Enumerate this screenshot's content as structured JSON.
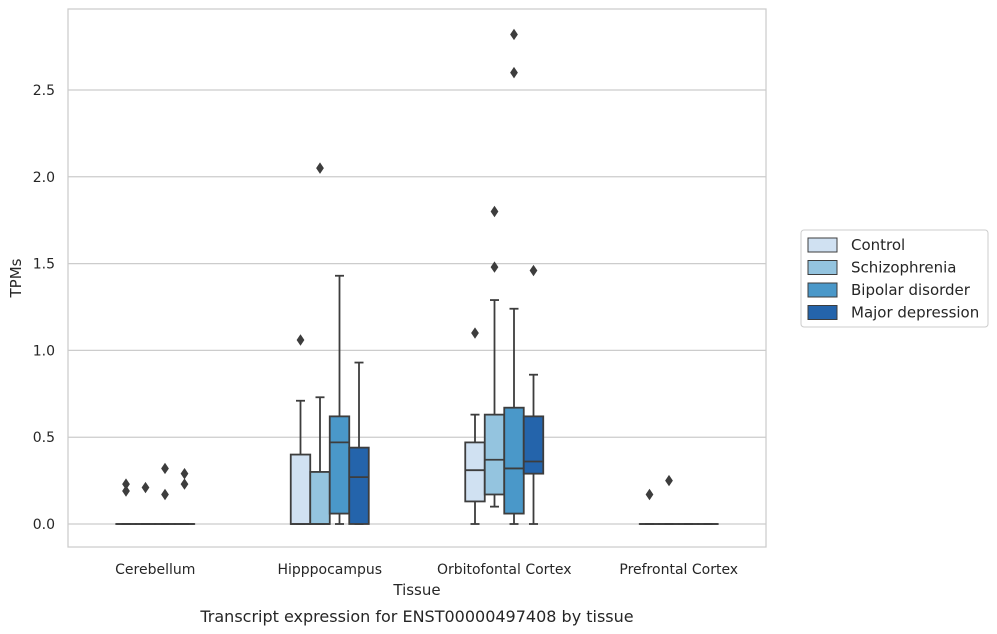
{
  "chart_data": {
    "type": "box",
    "caption": "Transcript expression for ENST00000497408 by tissue",
    "xlabel": "Tissue",
    "ylabel": "TPMs",
    "ylim": [
      -0.14,
      2.97
    ],
    "yticks": [
      0.0,
      0.5,
      1.0,
      1.5,
      2.0,
      2.5
    ],
    "ytick_labels": [
      "0.0",
      "0.5",
      "1.0",
      "1.5",
      "2.0",
      "2.5"
    ],
    "categories": [
      "Cerebellum",
      "Hipppocampus",
      "Orbitofontal Cortex",
      "Prefrontal Cortex"
    ],
    "grid": true,
    "legend_position": "right",
    "colors": [
      "#d0e1f2",
      "#94c4df",
      "#4a98c9",
      "#2464ab"
    ],
    "series": [
      {
        "name": "Control",
        "boxes": [
          {
            "min": 0.0,
            "q1": 0.0,
            "median": 0.0,
            "q3": 0.0,
            "max": 0.0,
            "outliers": [
              0.19,
              0.23
            ]
          },
          {
            "min": 0.0,
            "q1": 0.0,
            "median": 0.0,
            "q3": 0.4,
            "max": 0.71,
            "outliers": [
              1.06
            ]
          },
          {
            "min": 0.0,
            "q1": 0.13,
            "median": 0.31,
            "q3": 0.47,
            "max": 0.63,
            "outliers": [
              1.1
            ]
          },
          {
            "min": 0.0,
            "q1": 0.0,
            "median": 0.0,
            "q3": 0.0,
            "max": 0.0,
            "outliers": [
              0.17
            ]
          }
        ]
      },
      {
        "name": "Schizophrenia",
        "boxes": [
          {
            "min": 0.0,
            "q1": 0.0,
            "median": 0.0,
            "q3": 0.0,
            "max": 0.0,
            "outliers": [
              0.21
            ]
          },
          {
            "min": 0.0,
            "q1": 0.0,
            "median": 0.0,
            "q3": 0.3,
            "max": 0.73,
            "outliers": [
              2.05
            ]
          },
          {
            "min": 0.1,
            "q1": 0.17,
            "median": 0.37,
            "q3": 0.63,
            "max": 1.29,
            "outliers": [
              1.48,
              1.8
            ]
          },
          {
            "min": 0.0,
            "q1": 0.0,
            "median": 0.0,
            "q3": 0.0,
            "max": 0.0,
            "outliers": [
              0.25
            ]
          }
        ]
      },
      {
        "name": "Bipolar disorder",
        "boxes": [
          {
            "min": 0.0,
            "q1": 0.0,
            "median": 0.0,
            "q3": 0.0,
            "max": 0.0,
            "outliers": [
              0.17,
              0.32
            ]
          },
          {
            "min": 0.0,
            "q1": 0.06,
            "median": 0.47,
            "q3": 0.62,
            "max": 1.43,
            "outliers": []
          },
          {
            "min": 0.0,
            "q1": 0.06,
            "median": 0.32,
            "q3": 0.67,
            "max": 1.24,
            "outliers": [
              2.6,
              2.82
            ]
          },
          {
            "min": 0.0,
            "q1": 0.0,
            "median": 0.0,
            "q3": 0.0,
            "max": 0.0,
            "outliers": []
          }
        ]
      },
      {
        "name": "Major depression",
        "boxes": [
          {
            "min": 0.0,
            "q1": 0.0,
            "median": 0.0,
            "q3": 0.0,
            "max": 0.0,
            "outliers": [
              0.23,
              0.29
            ]
          },
          {
            "min": 0.0,
            "q1": 0.0,
            "median": 0.27,
            "q3": 0.44,
            "max": 0.93,
            "outliers": []
          },
          {
            "min": 0.0,
            "q1": 0.29,
            "median": 0.36,
            "q3": 0.62,
            "max": 0.86,
            "outliers": [
              1.46
            ]
          },
          {
            "min": 0.0,
            "q1": 0.0,
            "median": 0.0,
            "q3": 0.0,
            "max": 0.0,
            "outliers": []
          }
        ]
      }
    ]
  }
}
